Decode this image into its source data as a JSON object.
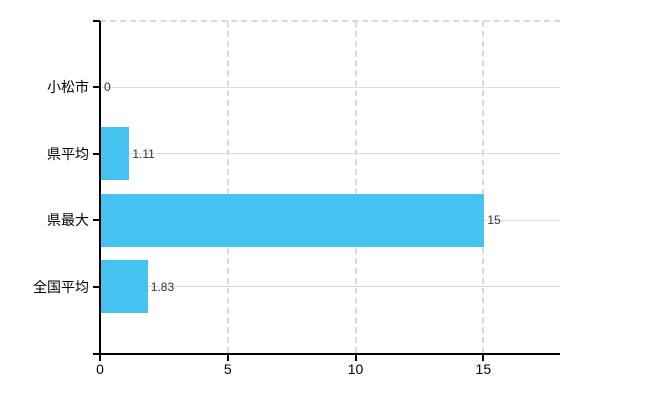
{
  "chart_data": {
    "type": "bar",
    "orientation": "horizontal",
    "categories": [
      "小松市",
      "県平均",
      "県最大",
      "全国平均"
    ],
    "values": [
      0,
      1.11,
      15,
      1.83
    ],
    "value_labels": [
      "0",
      "1.11",
      "15",
      "1.83"
    ],
    "xlim": [
      0,
      18
    ],
    "xticks": [
      0,
      5,
      10,
      15
    ],
    "xtick_labels": [
      "0",
      "5",
      "10",
      "15"
    ],
    "grid": true,
    "legend_position": "none",
    "bar_color": "#45C2EF",
    "grid_color": "#dcdcdc",
    "axis_color": "#000000",
    "value_label_color": "#333333"
  }
}
